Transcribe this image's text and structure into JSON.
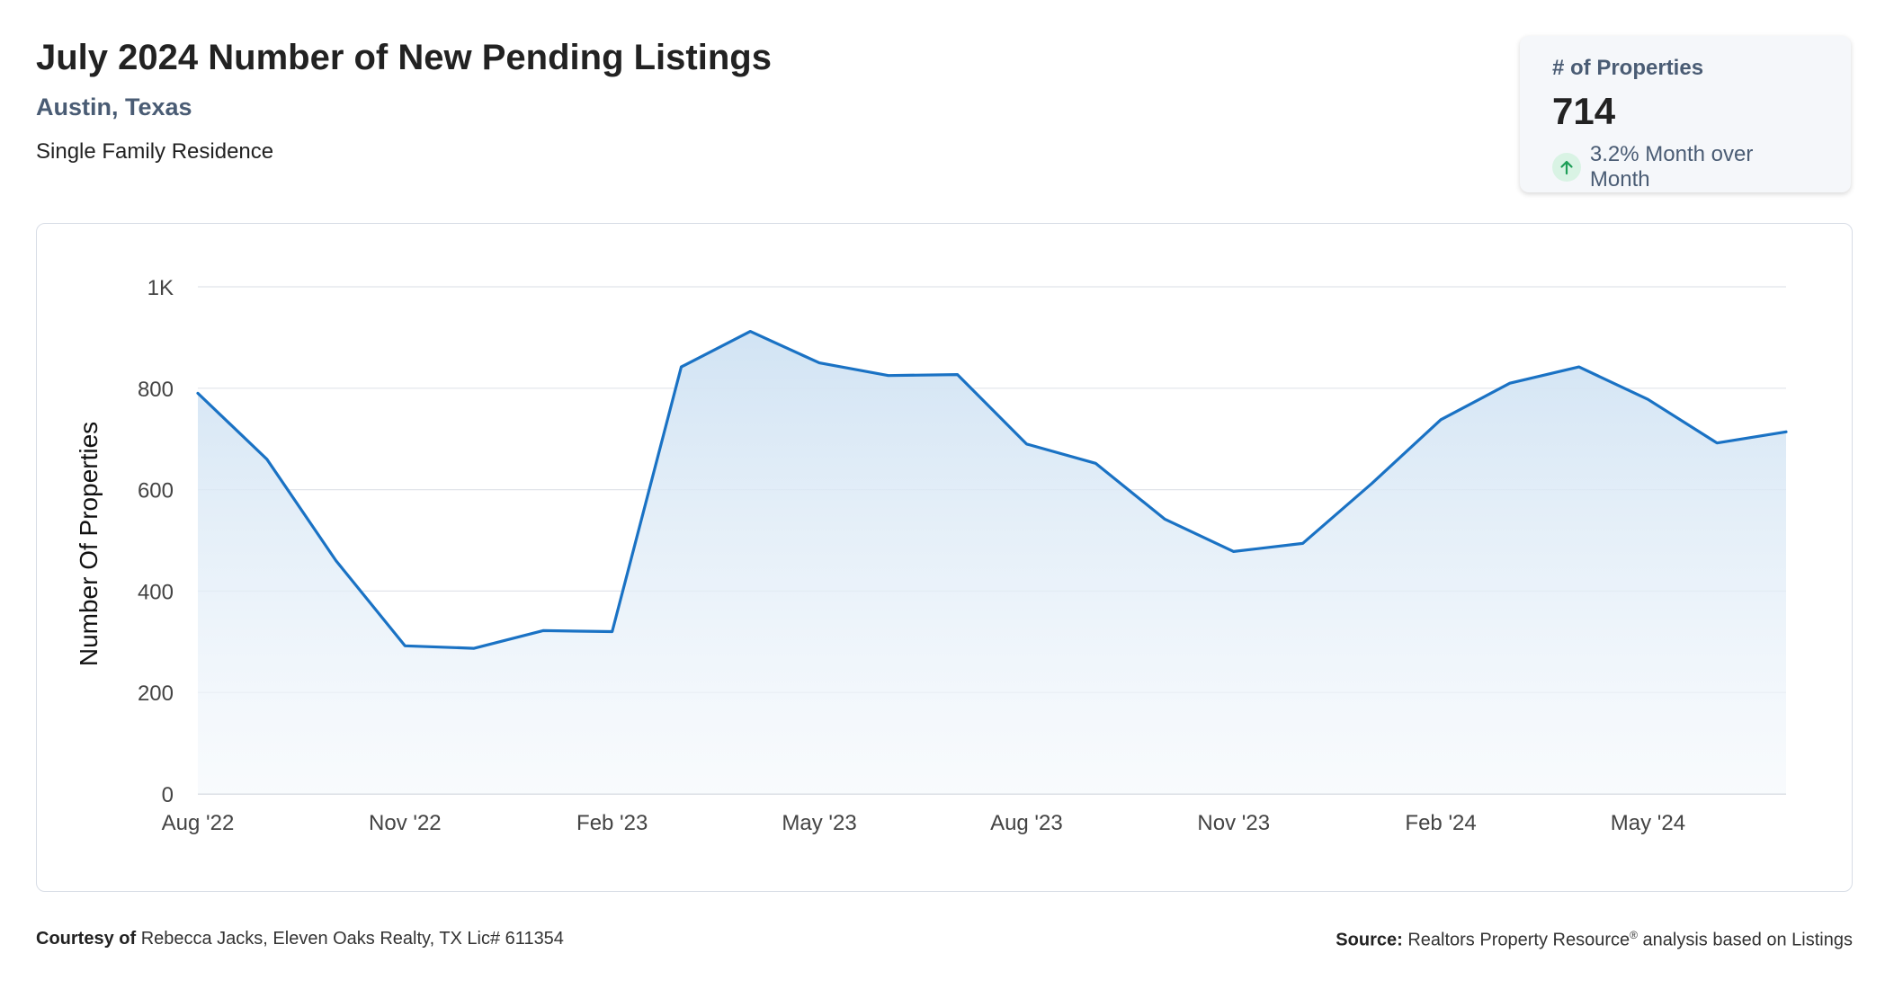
{
  "header": {
    "title": "July 2024 Number of New Pending Listings",
    "location": "Austin, Texas",
    "subtitle": "Single Family Residence"
  },
  "stat_card": {
    "label": "# of Properties",
    "value": "714",
    "change_icon": "arrow-up-icon",
    "change_text": "3.2% Month over Month",
    "change_color": "#1e9e57"
  },
  "colors": {
    "line": "#1a72c4",
    "area_top": "#cfe2f3",
    "grid": "#e1e4ea"
  },
  "chart_data": {
    "type": "area",
    "title": "",
    "xlabel": "",
    "ylabel": "Number Of Properties",
    "ylim": [
      0,
      1000
    ],
    "yticks": [
      0,
      200,
      400,
      600,
      800,
      1000
    ],
    "ytick_labels": [
      "0",
      "200",
      "400",
      "600",
      "800",
      "1K"
    ],
    "xtick_labels": [
      "Aug '22",
      "Nov '22",
      "Feb '23",
      "May '23",
      "Aug '23",
      "Nov '23",
      "Feb '24",
      "May '24"
    ],
    "grid": true,
    "legend": false,
    "x": [
      "Aug '22",
      "Sep '22",
      "Oct '22",
      "Nov '22",
      "Dec '22",
      "Jan '23",
      "Feb '23",
      "Mar '23",
      "Apr '23",
      "May '23",
      "Jun '23",
      "Jul '23",
      "Aug '23",
      "Sep '23",
      "Oct '23",
      "Nov '23",
      "Dec '23",
      "Jan '24",
      "Feb '24",
      "Mar '24",
      "Apr '24",
      "May '24",
      "Jun '24",
      "Jul '24"
    ],
    "series": [
      {
        "values": [
          790,
          660,
          460,
          292,
          287,
          322,
          320,
          842,
          912,
          850,
          825,
          827,
          690,
          652,
          542,
          478,
          494,
          612,
          738,
          810,
          842,
          778,
          692,
          714
        ]
      }
    ]
  },
  "footer": {
    "courtesy_label": "Courtesy of",
    "courtesy_text": "Rebecca Jacks, Eleven Oaks Realty, TX Lic# 611354",
    "source_label": "Source:",
    "source_text": "Realtors Property Resource",
    "source_reg": "®",
    "source_suffix": "analysis based on Listings"
  }
}
